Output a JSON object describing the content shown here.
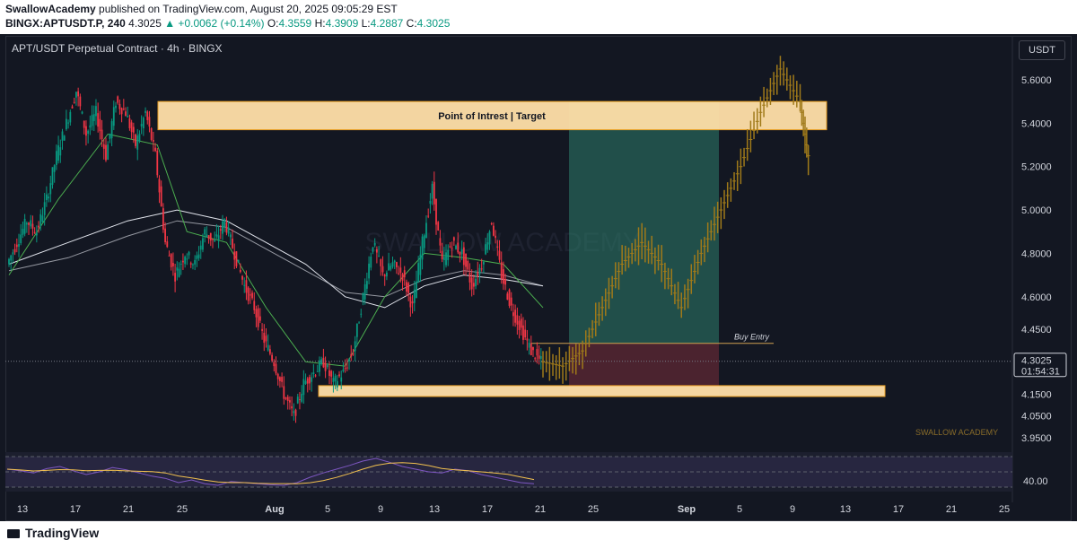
{
  "header": {
    "author": "SwallowAcademy",
    "published": " published on TradingView.com, August 20, 2025 09:05:29 EST",
    "symbol": "BINGX:APTUSDT.P, 240",
    "last": "4.3025",
    "change": "▲ +0.0062 (+0.14%)",
    "o_label": "O:",
    "o": "4.3559",
    "h_label": "H:",
    "h": "4.3909",
    "l_label": "L:",
    "l": "4.2887",
    "c_label": "C:",
    "c": "4.3025"
  },
  "chart_title": "APT/USDT Perpetual Contract · 4h · BINGX",
  "currency": "USDT",
  "footer": {
    "brand": "TradingView"
  },
  "colors": {
    "bg": "#131722",
    "up": "#089981",
    "down": "#f23645",
    "zone": "#ffe0a8",
    "zone_border": "#f5a623",
    "target_fill": "#2e7d6b",
    "stop_fill": "#7a2d3a",
    "projection": "#a07a1a",
    "rsi_line": "#7e57c2",
    "rsi_ma": "#f2c14e"
  },
  "chart_data": {
    "type": "candlestick",
    "symbol": "APT/USDT",
    "timeframe": "4h",
    "y_ticks": [
      "5.6000",
      "5.4000",
      "5.2000",
      "5.0000",
      "4.8000",
      "4.6000",
      "4.4500",
      "4.1500",
      "4.0500",
      "3.9500"
    ],
    "x_ticks": [
      "13",
      "17",
      "21",
      "25",
      "Aug",
      "5",
      "9",
      "13",
      "17",
      "21",
      "25",
      "Sep",
      "5",
      "9",
      "13",
      "17",
      "21",
      "25"
    ],
    "last_price": "4.3025",
    "countdown": "01:54:31",
    "price_path": [
      [
        0,
        4.75
      ],
      [
        1,
        4.85
      ],
      [
        2,
        4.95
      ],
      [
        3,
        4.9
      ],
      [
        4,
        5.05
      ],
      [
        5,
        5.25
      ],
      [
        6,
        5.4
      ],
      [
        7,
        5.55
      ],
      [
        8,
        5.35
      ],
      [
        9,
        5.45
      ],
      [
        10,
        5.25
      ],
      [
        11,
        5.5
      ],
      [
        12,
        5.45
      ],
      [
        13,
        5.3
      ],
      [
        14,
        5.45
      ],
      [
        15,
        5.25
      ],
      [
        16,
        4.85
      ],
      [
        17,
        4.7
      ],
      [
        18,
        4.8
      ],
      [
        19,
        4.75
      ],
      [
        20,
        4.9
      ],
      [
        21,
        4.85
      ],
      [
        22,
        4.95
      ],
      [
        23,
        4.8
      ],
      [
        24,
        4.65
      ],
      [
        25,
        4.55
      ],
      [
        26,
        4.4
      ],
      [
        27,
        4.3
      ],
      [
        28,
        4.15
      ],
      [
        29,
        4.05
      ],
      [
        30,
        4.2
      ],
      [
        31,
        4.25
      ],
      [
        32,
        4.3
      ],
      [
        33,
        4.2
      ],
      [
        34,
        4.25
      ],
      [
        35,
        4.35
      ],
      [
        36,
        4.6
      ],
      [
        37,
        4.85
      ],
      [
        38,
        4.7
      ],
      [
        39,
        4.75
      ],
      [
        40,
        4.7
      ],
      [
        41,
        4.55
      ],
      [
        42,
        4.85
      ],
      [
        43,
        5.1
      ],
      [
        44,
        4.75
      ],
      [
        45,
        4.85
      ],
      [
        46,
        4.8
      ],
      [
        47,
        4.65
      ],
      [
        48,
        4.75
      ],
      [
        49,
        4.95
      ],
      [
        50,
        4.7
      ],
      [
        51,
        4.55
      ],
      [
        52,
        4.45
      ],
      [
        53,
        4.35
      ],
      [
        54,
        4.3
      ]
    ],
    "projection_path": [
      [
        54,
        4.3
      ],
      [
        56,
        4.28
      ],
      [
        58,
        4.35
      ],
      [
        60,
        4.55
      ],
      [
        62,
        4.75
      ],
      [
        64,
        4.85
      ],
      [
        66,
        4.75
      ],
      [
        68,
        4.55
      ],
      [
        70,
        4.8
      ],
      [
        72,
        5.0
      ],
      [
        74,
        5.2
      ],
      [
        76,
        5.45
      ],
      [
        78,
        5.65
      ],
      [
        80,
        5.5
      ],
      [
        81,
        5.2
      ]
    ],
    "ema_fast": [
      [
        0,
        4.7
      ],
      [
        5,
        5.05
      ],
      [
        10,
        5.35
      ],
      [
        15,
        5.3
      ],
      [
        18,
        4.9
      ],
      [
        22,
        4.85
      ],
      [
        26,
        4.55
      ],
      [
        30,
        4.3
      ],
      [
        34,
        4.28
      ],
      [
        38,
        4.6
      ],
      [
        42,
        4.8
      ],
      [
        46,
        4.78
      ],
      [
        50,
        4.75
      ],
      [
        54,
        4.55
      ]
    ],
    "ma_slow": [
      [
        0,
        4.75
      ],
      [
        6,
        4.85
      ],
      [
        12,
        4.95
      ],
      [
        17,
        5.0
      ],
      [
        22,
        4.95
      ],
      [
        26,
        4.85
      ],
      [
        30,
        4.75
      ],
      [
        34,
        4.6
      ],
      [
        38,
        4.55
      ],
      [
        42,
        4.65
      ],
      [
        46,
        4.7
      ],
      [
        50,
        4.68
      ],
      [
        54,
        4.65
      ]
    ],
    "ma_200": [
      [
        0,
        4.72
      ],
      [
        6,
        4.78
      ],
      [
        12,
        4.88
      ],
      [
        17,
        4.95
      ],
      [
        22,
        4.92
      ],
      [
        26,
        4.82
      ],
      [
        30,
        4.72
      ],
      [
        34,
        4.62
      ],
      [
        38,
        4.6
      ],
      [
        42,
        4.68
      ],
      [
        46,
        4.72
      ],
      [
        50,
        4.7
      ],
      [
        54,
        4.65
      ]
    ],
    "zones": [
      {
        "label": "Point of Intrest | Target",
        "top": 5.5,
        "bottom": 5.37
      },
      {
        "label": "",
        "top": 4.19,
        "bottom": 4.14
      }
    ],
    "position": {
      "entry": 4.385,
      "target": 5.5,
      "stop": 4.15
    },
    "buy_entry_label": "Buy Entry",
    "watermark": "SWALLOW ACADEMY",
    "rsi": {
      "tick": "40.00",
      "values": [
        55,
        52,
        48,
        56,
        60,
        52,
        45,
        50,
        58,
        54,
        48,
        42,
        38,
        30,
        35,
        28,
        25,
        32,
        30,
        28,
        26,
        25,
        30,
        40,
        48,
        55,
        62,
        70,
        75,
        68,
        60,
        55,
        50,
        48,
        55,
        52,
        45,
        40,
        35,
        30,
        28
      ]
    }
  }
}
